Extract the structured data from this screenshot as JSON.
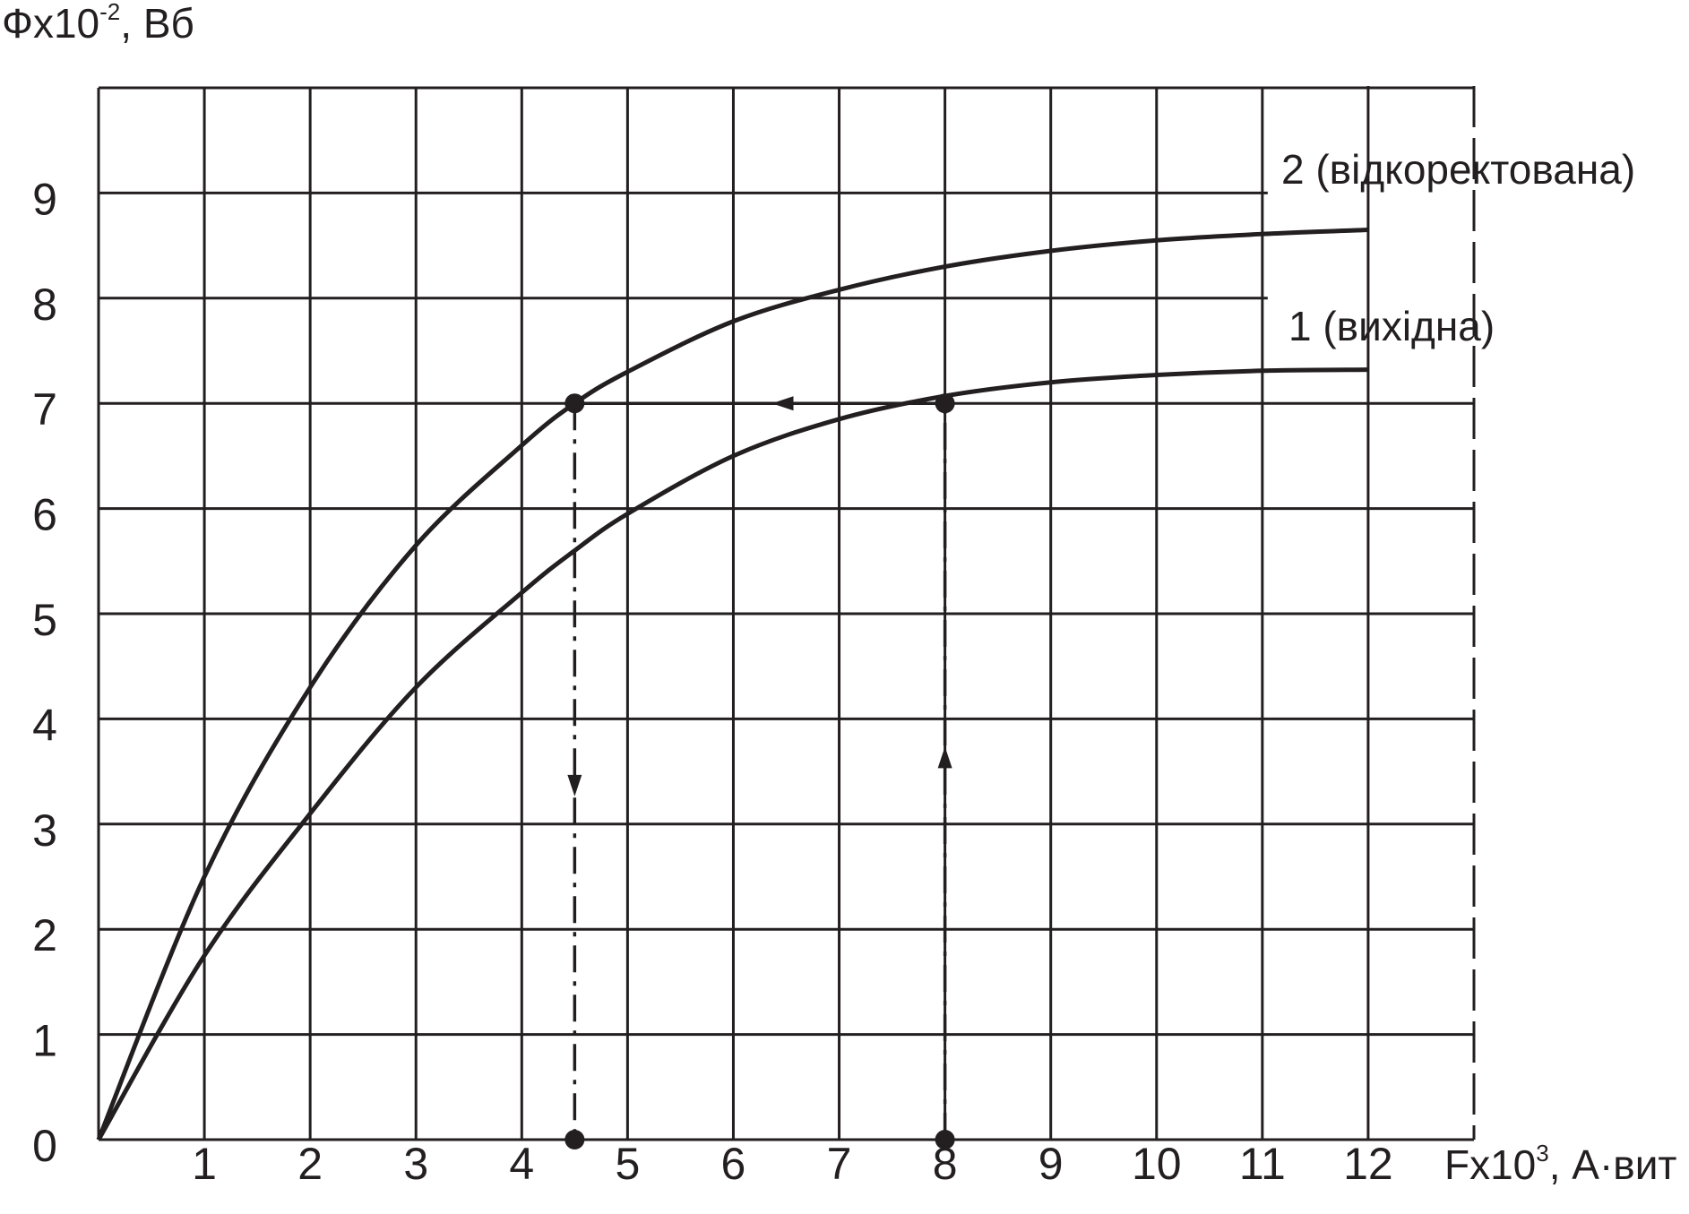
{
  "chart_data": {
    "type": "line",
    "ylabel": {
      "base": "Фx10",
      "exp": "-2",
      "unit": ", Вб"
    },
    "xlabel": {
      "base": "Fx10",
      "exp": "3",
      "unit": ", А·вит"
    },
    "x_ticks": [
      "1",
      "2",
      "3",
      "4",
      "5",
      "6",
      "7",
      "8",
      "9",
      "10",
      "11",
      "12"
    ],
    "y_ticks": [
      "0",
      "1",
      "2",
      "3",
      "4",
      "5",
      "6",
      "7",
      "8",
      "9"
    ],
    "xlim": [
      0,
      13
    ],
    "ylim": [
      0,
      10
    ],
    "grid": true,
    "series": [
      {
        "name": "2 (відкоректована)",
        "x": [
          0,
          1,
          2,
          3,
          4,
          4.5,
          5,
          6,
          7,
          8,
          9,
          10,
          11,
          12
        ],
        "y": [
          0,
          2.5,
          4.3,
          5.65,
          6.6,
          7.0,
          7.3,
          7.78,
          8.08,
          8.3,
          8.45,
          8.55,
          8.61,
          8.65
        ],
        "color": "#231f20"
      },
      {
        "name": "1 (вихідна)",
        "x": [
          0,
          1,
          2,
          3,
          4,
          4.5,
          5,
          6,
          7,
          8,
          9,
          10,
          11,
          12
        ],
        "y": [
          0,
          1.75,
          3.1,
          4.3,
          5.2,
          5.6,
          5.95,
          6.5,
          6.85,
          7.07,
          7.2,
          7.27,
          7.31,
          7.32
        ],
        "color": "#231f20"
      }
    ],
    "markers": [
      {
        "x": 4.5,
        "y": 7
      },
      {
        "x": 8,
        "y": 7
      },
      {
        "x": 4.5,
        "y": 0
      },
      {
        "x": 8,
        "y": 0
      }
    ],
    "guides": [
      {
        "from": [
          8,
          0
        ],
        "to": [
          8,
          7
        ],
        "style": "dashed",
        "arrow": "up"
      },
      {
        "from": [
          8,
          7
        ],
        "to": [
          4.5,
          7
        ],
        "style": "solid",
        "arrow": "left"
      },
      {
        "from": [
          4.5,
          7
        ],
        "to": [
          4.5,
          0
        ],
        "style": "dashed",
        "arrow": "down"
      }
    ]
  }
}
